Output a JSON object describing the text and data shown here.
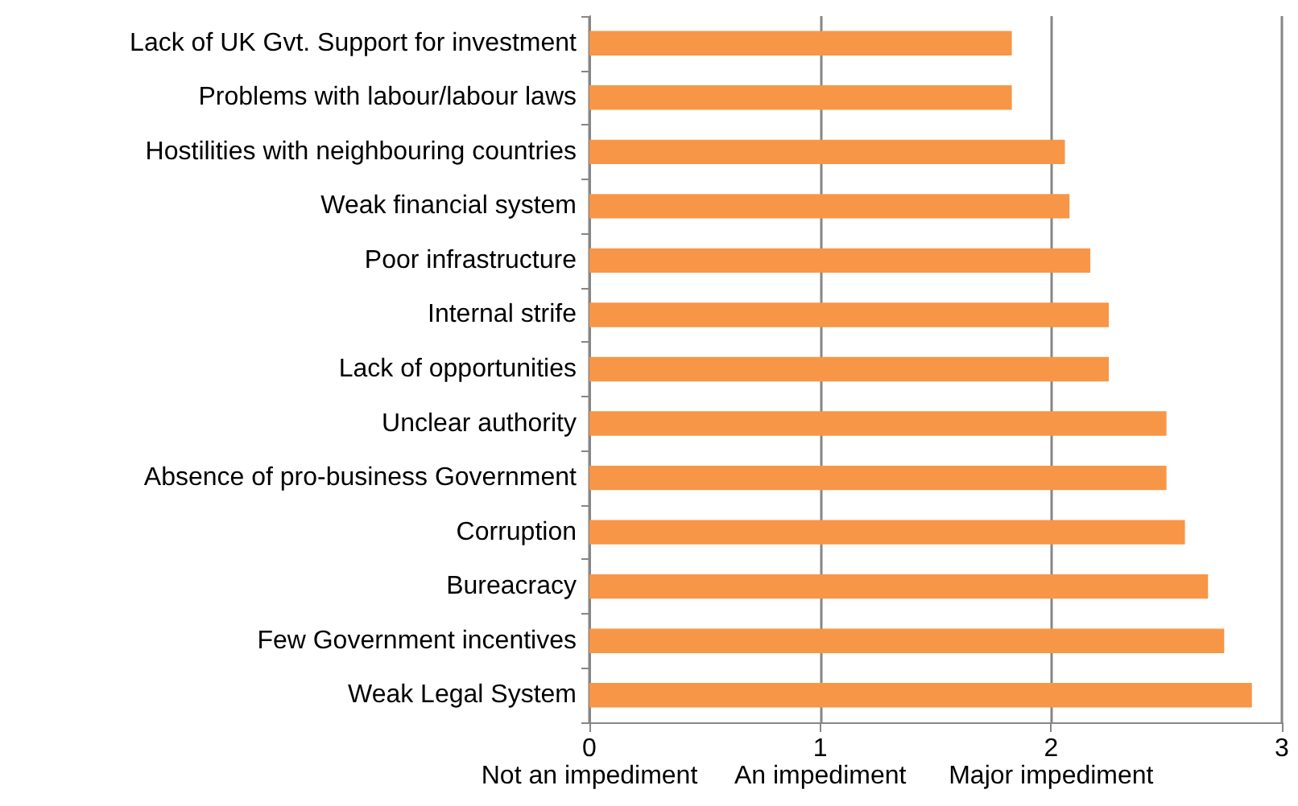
{
  "chart_data": {
    "type": "bar",
    "orientation": "horizontal",
    "categories": [
      "Lack of UK Gvt. Support for investment",
      "Problems with labour/labour laws",
      "Hostilities with neighbouring countries",
      "Weak financial system",
      "Poor infrastructure",
      "Internal strife",
      "Lack of opportunities",
      "Unclear authority",
      "Absence of pro-business Government",
      "Corruption",
      "Bureacracy",
      "Few Government incentives",
      "Weak Legal System"
    ],
    "values": [
      1.83,
      1.83,
      2.06,
      2.08,
      2.17,
      2.25,
      2.25,
      2.5,
      2.5,
      2.58,
      2.68,
      2.75,
      2.87
    ],
    "color": "#f79646",
    "xlim": [
      0,
      3
    ],
    "xticks": [
      {
        "value": 0,
        "label": "0\nNot an impediment"
      },
      {
        "value": 1,
        "label": "1\nAn impediment"
      },
      {
        "value": 2,
        "label": "2\nMajor impediment"
      },
      3
    ],
    "grid": "x"
  }
}
